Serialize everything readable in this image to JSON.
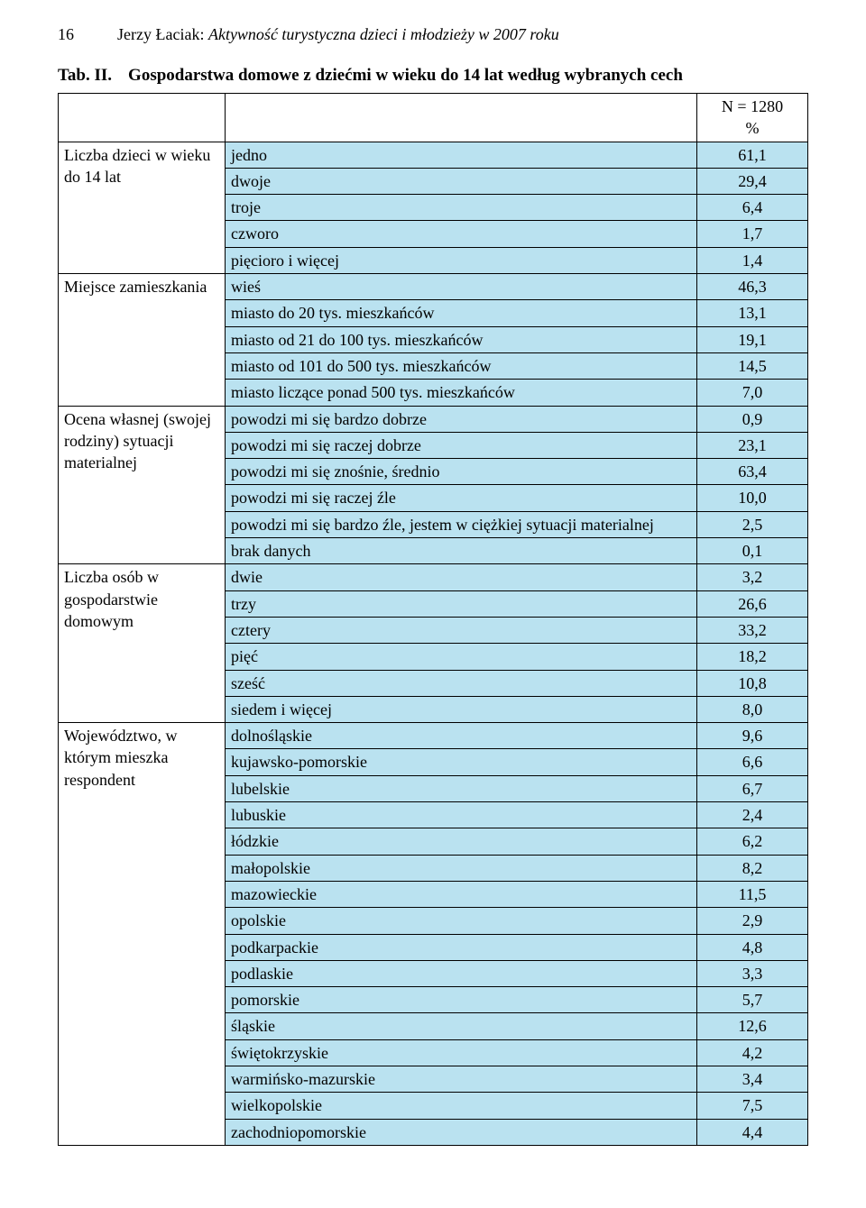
{
  "page_number": "16",
  "header_author": "Jerzy Łaciak:",
  "header_title_italic": "Aktywność turystyczna dzieci i młodzieży w 2007 roku",
  "table_number_label": "Tab. II.",
  "table_title": "Gospodarstwa domowe z dziećmi w wieku do 14 lat według wybranych cech",
  "n_header_line1": "N = 1280",
  "n_header_line2": "%",
  "groups": [
    {
      "category": "Liczba dzieci w wieku do 14 lat",
      "rows": [
        {
          "label": "jedno",
          "value": "61,1"
        },
        {
          "label": "dwoje",
          "value": "29,4"
        },
        {
          "label": "troje",
          "value": "6,4"
        },
        {
          "label": "czworo",
          "value": "1,7"
        },
        {
          "label": "pięcioro i więcej",
          "value": "1,4"
        }
      ]
    },
    {
      "category": "Miejsce zamieszkania",
      "rows": [
        {
          "label": "wieś",
          "value": "46,3"
        },
        {
          "label": "miasto do 20 tys. mieszkańców",
          "value": "13,1"
        },
        {
          "label": "miasto od 21 do 100 tys. mieszkańców",
          "value": "19,1"
        },
        {
          "label": "miasto od 101 do 500 tys. mieszkańców",
          "value": "14,5"
        },
        {
          "label": "miasto liczące ponad 500 tys. mieszkańców",
          "value": "7,0"
        }
      ]
    },
    {
      "category": "Ocena własnej (swojej rodziny) sytuacji materialnej",
      "rows": [
        {
          "label": "powodzi mi się bardzo dobrze",
          "value": "0,9"
        },
        {
          "label": "powodzi mi się raczej dobrze",
          "value": "23,1"
        },
        {
          "label": "powodzi mi się znośnie, średnio",
          "value": "63,4"
        },
        {
          "label": "powodzi mi się raczej źle",
          "value": "10,0"
        },
        {
          "label": "powodzi mi się bardzo źle, jestem w ciężkiej sytuacji materialnej",
          "value": "2,5"
        },
        {
          "label": "brak danych",
          "value": "0,1"
        }
      ]
    },
    {
      "category": "Liczba osób w gospodarstwie domowym",
      "rows": [
        {
          "label": "dwie",
          "value": "3,2"
        },
        {
          "label": "trzy",
          "value": "26,6"
        },
        {
          "label": "cztery",
          "value": "33,2"
        },
        {
          "label": "pięć",
          "value": "18,2"
        },
        {
          "label": "sześć",
          "value": "10,8"
        },
        {
          "label": "siedem i więcej",
          "value": "8,0"
        }
      ]
    },
    {
      "category": "Województwo, w którym mieszka respondent",
      "rows": [
        {
          "label": "dolnośląskie",
          "value": "9,6"
        },
        {
          "label": "kujawsko-pomorskie",
          "value": "6,6"
        },
        {
          "label": "lubelskie",
          "value": "6,7"
        },
        {
          "label": "lubuskie",
          "value": "2,4"
        },
        {
          "label": "łódzkie",
          "value": "6,2"
        },
        {
          "label": "małopolskie",
          "value": "8,2"
        },
        {
          "label": "mazowieckie",
          "value": "11,5"
        },
        {
          "label": "opolskie",
          "value": "2,9"
        },
        {
          "label": "podkarpackie",
          "value": "4,8"
        },
        {
          "label": "podlaskie",
          "value": "3,3"
        },
        {
          "label": "pomorskie",
          "value": "5,7"
        },
        {
          "label": "śląskie",
          "value": "12,6"
        },
        {
          "label": "świętokrzyskie",
          "value": "4,2"
        },
        {
          "label": "warmińsko-mazurskie",
          "value": "3,4"
        },
        {
          "label": "wielkopolskie",
          "value": "7,5"
        },
        {
          "label": "zachodniopomorskie",
          "value": "4,4"
        }
      ]
    }
  ]
}
